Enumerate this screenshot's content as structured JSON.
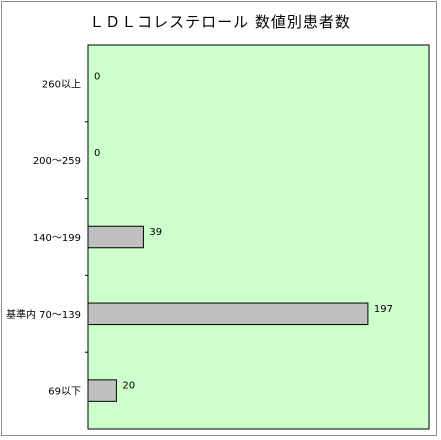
{
  "chart_data": {
    "type": "bar",
    "orientation": "horizontal",
    "title": "ＬＤＬコレステロール 数値別患者数",
    "xlabel": "",
    "ylabel": "",
    "categories": [
      "260以上",
      "200～259",
      "140～199",
      "基準内 70～139",
      "69以下"
    ],
    "values": [
      0,
      0,
      39,
      197,
      20
    ],
    "data_labels": [
      "0",
      "0",
      "39",
      "197",
      "20"
    ],
    "xlim": [
      0,
      240
    ],
    "grid": false,
    "legend": "none",
    "colors": {
      "plot_background": "#ccffcc",
      "bar_fill": "#c0c0c0",
      "bar_stroke": "#000000",
      "frame": "#8c8c8c"
    }
  }
}
